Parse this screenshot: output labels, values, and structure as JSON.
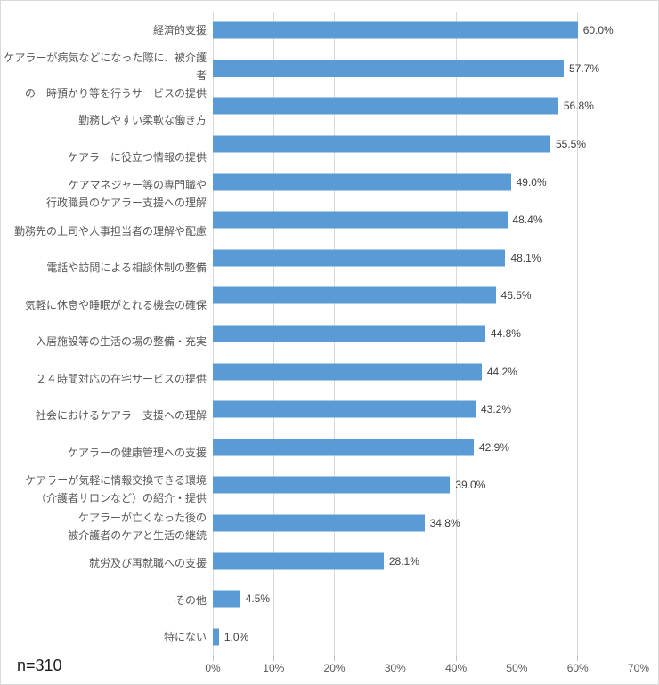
{
  "chart_data": {
    "type": "bar",
    "orientation": "horizontal",
    "title": "",
    "categories": [
      "経済的支援",
      "ケアラーが病気などになった際に、被介護者\nの一時預かり等を行うサービスの提供",
      "勤務しやすい柔軟な働き方",
      "ケアラーに役立つ情報の提供",
      "ケアマネジャー等の専門職や\n行政職員のケアラー支援への理解",
      "勤務先の上司や人事担当者の理解や配慮",
      "電話や訪問による相談体制の整備",
      "気軽に休息や睡眠がとれる機会の確保",
      "入居施設等の生活の場の整備・充実",
      "２４時間対応の在宅サービスの提供",
      "社会におけるケアラー支援への理解",
      "ケアラーの健康管理への支援",
      "ケアラーが気軽に情報交換できる環境\n（介護者サロンなど）の紹介・提供",
      "ケアラーが亡くなった後の\n被介護者のケアと生活の継続",
      "就労及び再就職への支援",
      "その他",
      "特にない"
    ],
    "values": [
      60.0,
      57.7,
      56.8,
      55.5,
      49.0,
      48.4,
      48.1,
      46.5,
      44.8,
      44.2,
      43.2,
      42.9,
      39.0,
      34.8,
      28.1,
      4.5,
      1.0
    ],
    "value_labels": [
      "60.0%",
      "57.7%",
      "56.8%",
      "55.5%",
      "49.0%",
      "48.4%",
      "48.1%",
      "46.5%",
      "44.8%",
      "44.2%",
      "43.2%",
      "42.9%",
      "39.0%",
      "34.8%",
      "28.1%",
      "4.5%",
      "1.0%"
    ],
    "xlabel": "",
    "ylabel": "",
    "xlim": [
      0,
      70
    ],
    "x_ticks": [
      "0%",
      "10%",
      "20%",
      "30%",
      "40%",
      "50%",
      "60%",
      "70%"
    ],
    "grid": true,
    "legend": false,
    "bar_color": "#5b9bd5",
    "gridline_color": "#d9d9d9",
    "note": "n=310"
  }
}
